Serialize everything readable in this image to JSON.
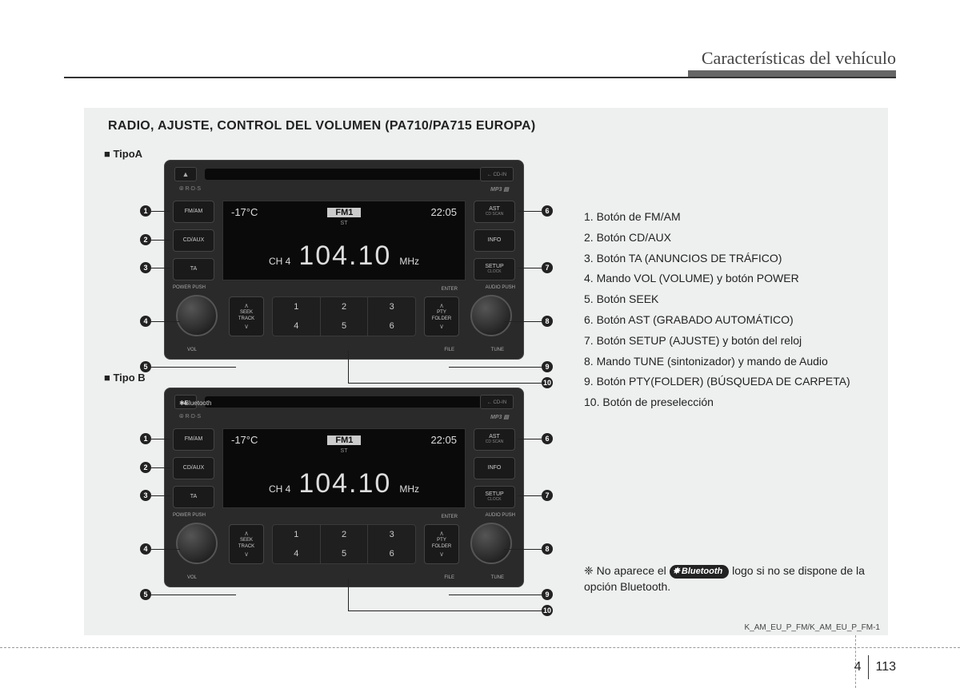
{
  "header": {
    "title": "Características del vehículo"
  },
  "section_title": "RADIO, AJUSTE, CONTROL DEL VOLUMEN (PA710/PA715 EUROPA)",
  "types": {
    "a": "■ TipoA",
    "b": "■ Tipo B"
  },
  "radio": {
    "cdin": "← CD-IN",
    "rds": "⦾ R·D·S",
    "mp3": "MP3",
    "bluetooth": "✱Bluetooth",
    "left_buttons": [
      {
        "main": "FM/AM",
        "sub": ""
      },
      {
        "main": "CD/AUX",
        "sub": ""
      },
      {
        "main": "TA",
        "sub": ""
      }
    ],
    "right_buttons": [
      {
        "main": "AST",
        "sub": "CD SCAN"
      },
      {
        "main": "INFO",
        "sub": ""
      },
      {
        "main": "SETUP",
        "sub": "CLOCK"
      }
    ],
    "display": {
      "temp": "-17°C",
      "band": "FM1",
      "time": "22:05",
      "st": "ST",
      "channel": "CH 4",
      "freq": "104.10",
      "unit": "MHz"
    },
    "knob_left_top": "POWER\nPUSH",
    "knob_left_bot": "VOL",
    "knob_right_top": "AUDIO\nPUSH",
    "knob_right_bot": "TUNE",
    "seek": {
      "up": "∧",
      "t1": "SEEK",
      "t2": "TRACK",
      "down": "∨"
    },
    "pty": {
      "up": "∧",
      "t1": "PTY",
      "t2": "FOLDER",
      "down": "∨"
    },
    "enter": "ENTER",
    "file": "FILE",
    "presets": [
      "1",
      "2",
      "3",
      "4",
      "5",
      "6"
    ]
  },
  "legend": [
    "1. Botón de FM/AM",
    "2. Botón CD/AUX",
    "3. Botón TA (ANUNCIOS DE TRÁFICO)",
    "4. Mando VOL (VOLUME) y botón POWER",
    "5. Botón SEEK",
    "6. Botón AST (GRABADO AUTOMÁTICO)",
    "7. Botón SETUP (AJUSTE) y botón del reloj",
    "8. Mando TUNE (sintonizador) y mando de Audio",
    "9. Botón PTY(FOLDER) (BÚSQUEDA DE CARPETA)",
    "10. Botón de preselección"
  ],
  "bt_note": {
    "prefix": "❈ No aparece el ",
    "logo": "Bluetooth",
    "suffix": " logo si no se dispone de la opción Bluetooth."
  },
  "doc_code": "K_AM_EU_P_FM/K_AM_EU_P_FM-1",
  "page": {
    "chapter": "4",
    "num": "113"
  }
}
